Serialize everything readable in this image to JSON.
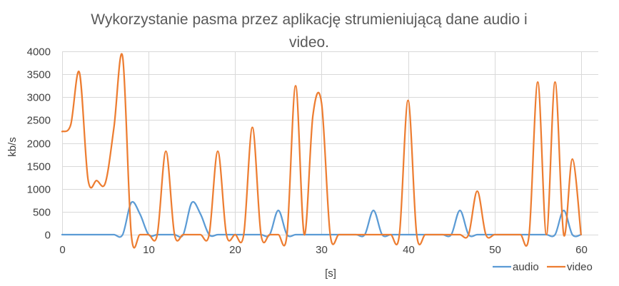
{
  "chart_data": {
    "type": "line",
    "title_line1": "Wykorzystanie pasma przez aplikację strumieniującą dane audio i",
    "title_line2": "video.",
    "xlabel": "[s]",
    "ylabel": "kb/s",
    "xlim": [
      0,
      62
    ],
    "ylim": [
      0,
      4000
    ],
    "xticks": [
      0,
      10,
      20,
      30,
      40,
      50,
      60
    ],
    "yticks": [
      0,
      500,
      1000,
      1500,
      2000,
      2500,
      3000,
      3500,
      4000
    ],
    "grid": true,
    "smooth": true,
    "legend_position": "bottom-right",
    "series": [
      {
        "name": "audio",
        "color": "#5B9BD5",
        "x": [
          0,
          1,
          2,
          3,
          4,
          5,
          6,
          7,
          8,
          9,
          10,
          11,
          12,
          13,
          14,
          15,
          16,
          17,
          18,
          19,
          20,
          21,
          22,
          23,
          24,
          25,
          26,
          27,
          28,
          29,
          30,
          31,
          32,
          33,
          34,
          35,
          36,
          37,
          38,
          39,
          40,
          41,
          42,
          43,
          44,
          45,
          46,
          47,
          48,
          49,
          50,
          51,
          52,
          53,
          54,
          55,
          56,
          57,
          58,
          59,
          60
        ],
        "values": [
          0,
          0,
          0,
          0,
          0,
          0,
          0,
          0,
          700,
          450,
          0,
          0,
          0,
          0,
          0,
          700,
          450,
          0,
          0,
          0,
          0,
          0,
          0,
          0,
          0,
          530,
          0,
          0,
          0,
          0,
          0,
          0,
          0,
          0,
          0,
          0,
          530,
          0,
          0,
          0,
          0,
          0,
          0,
          0,
          0,
          0,
          530,
          0,
          0,
          0,
          0,
          0,
          0,
          0,
          0,
          0,
          0,
          0,
          530,
          0,
          0
        ]
      },
      {
        "name": "video",
        "color": "#ED7D31",
        "x": [
          0,
          1,
          2,
          3,
          4,
          5,
          6,
          7,
          8,
          9,
          10,
          11,
          12,
          13,
          14,
          15,
          16,
          17,
          18,
          19,
          20,
          21,
          22,
          23,
          24,
          25,
          26,
          27,
          28,
          29,
          30,
          31,
          32,
          33,
          34,
          35,
          36,
          37,
          38,
          39,
          40,
          41,
          42,
          43,
          44,
          45,
          46,
          47,
          48,
          49,
          50,
          51,
          52,
          53,
          54,
          55,
          56,
          57,
          58,
          59,
          60
        ],
        "values": [
          2250,
          2400,
          3540,
          1200,
          1180,
          1130,
          2350,
          3880,
          0,
          0,
          0,
          0,
          1820,
          0,
          0,
          0,
          0,
          0,
          1820,
          0,
          0,
          0,
          2340,
          0,
          0,
          0,
          0,
          3250,
          0,
          2600,
          2870,
          0,
          0,
          0,
          0,
          0,
          0,
          0,
          0,
          0,
          2930,
          0,
          0,
          0,
          0,
          0,
          0,
          0,
          950,
          0,
          0,
          0,
          0,
          0,
          0,
          3330,
          0,
          3330,
          0,
          1650,
          0
        ]
      }
    ]
  }
}
